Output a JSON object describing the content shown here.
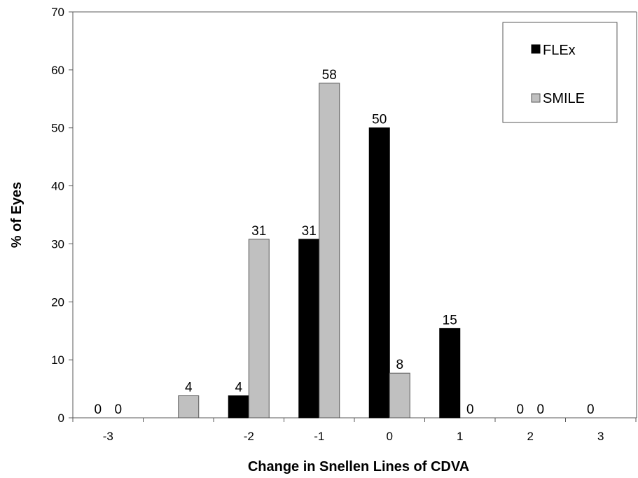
{
  "chart_data": {
    "type": "bar",
    "xlabel": "Change in Snellen Lines of CDVA",
    "ylabel": "% of Eyes",
    "ylim": [
      0,
      70
    ],
    "yticks": [
      "0",
      "10",
      "20",
      "30",
      "40",
      "50",
      "60",
      "70"
    ],
    "categories": [
      "-3",
      "",
      "-2",
      "-1",
      "0",
      "1",
      "2",
      "3"
    ],
    "series": [
      {
        "name": "FLEx",
        "color": "#000000",
        "values": [
          0,
          null,
          3.8,
          30.8,
          50,
          15.4,
          0,
          0
        ],
        "labels": [
          "0",
          "",
          "4",
          "31",
          "50",
          "15",
          "0",
          "0"
        ]
      },
      {
        "name": "SMILE",
        "color": "#c0c0c0",
        "values": [
          0,
          3.8,
          30.8,
          57.7,
          7.7,
          0,
          0,
          null
        ],
        "labels": [
          "0",
          "4",
          "31",
          "58",
          "8",
          "0",
          "0",
          ""
        ]
      }
    ],
    "legend_position": "top-right",
    "grid": false
  }
}
